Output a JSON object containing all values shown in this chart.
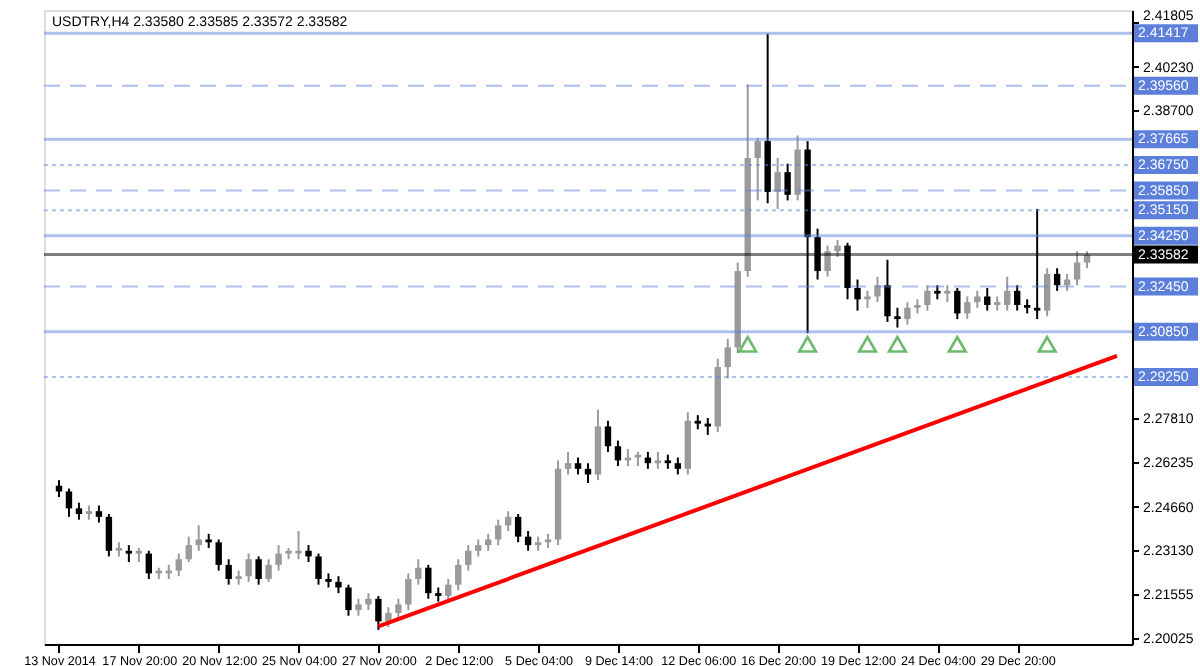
{
  "chart_data": {
    "type": "candlestick",
    "title": "USDTRY,H4  2.33580 2.33585 2.33572 2.33582",
    "categories": [
      "13 Nov 2014",
      null,
      null,
      null,
      null,
      null,
      null,
      null,
      "17 Nov 20:00",
      null,
      null,
      null,
      null,
      null,
      null,
      null,
      "20 Nov 12:00",
      null,
      null,
      null,
      null,
      null,
      null,
      null,
      "25 Nov 04:00",
      null,
      null,
      null,
      null,
      null,
      null,
      null,
      "27 Nov 20:00",
      null,
      null,
      null,
      null,
      null,
      null,
      null,
      "2 Dec 12:00",
      null,
      null,
      null,
      null,
      null,
      null,
      null,
      "5 Dec 04:00",
      null,
      null,
      null,
      null,
      null,
      null,
      null,
      "9 Dec 14:00",
      null,
      null,
      null,
      null,
      null,
      null,
      null,
      "12 Dec 06:00",
      null,
      null,
      null,
      null,
      null,
      null,
      null,
      "16 Dec 20:00",
      null,
      null,
      null,
      null,
      null,
      null,
      null,
      "19 Dec 12:00",
      null,
      null,
      null,
      null,
      null,
      null,
      null,
      "24 Dec 04:00",
      null,
      null,
      null,
      null,
      null,
      null,
      null,
      "29 Dec 20:00",
      null,
      null,
      null,
      null,
      null,
      null,
      null,
      null,
      null,
      null
    ],
    "ohlc": [
      [
        2.254,
        2.256,
        2.25,
        2.252
      ],
      [
        2.252,
        2.253,
        2.243,
        2.246
      ],
      [
        2.246,
        2.248,
        2.242,
        2.244
      ],
      [
        2.244,
        2.247,
        2.242,
        2.245
      ],
      [
        2.245,
        2.247,
        2.241,
        2.243
      ],
      [
        2.243,
        2.244,
        2.229,
        2.231
      ],
      [
        2.231,
        2.234,
        2.229,
        2.232
      ],
      [
        2.231,
        2.233,
        2.227,
        2.23
      ],
      [
        2.23,
        2.232,
        2.227,
        2.231
      ],
      [
        2.23,
        2.231,
        2.221,
        2.223
      ],
      [
        2.223,
        2.225,
        2.221,
        2.224
      ],
      [
        2.223,
        2.226,
        2.221,
        2.224
      ],
      [
        2.224,
        2.23,
        2.222,
        2.228
      ],
      [
        2.228,
        2.236,
        2.227,
        2.233
      ],
      [
        2.233,
        2.24,
        2.231,
        2.235
      ],
      [
        2.235,
        2.237,
        2.232,
        2.234
      ],
      [
        2.234,
        2.235,
        2.224,
        2.226
      ],
      [
        2.226,
        2.228,
        2.219,
        2.221
      ],
      [
        2.221,
        2.224,
        2.219,
        2.222
      ],
      [
        2.222,
        2.23,
        2.22,
        2.228
      ],
      [
        2.228,
        2.229,
        2.219,
        2.221
      ],
      [
        2.221,
        2.228,
        2.22,
        2.226
      ],
      [
        2.226,
        2.233,
        2.224,
        2.23
      ],
      [
        2.23,
        2.232,
        2.228,
        2.231
      ],
      [
        2.23,
        2.238,
        2.228,
        2.231
      ],
      [
        2.231,
        2.233,
        2.227,
        2.229
      ],
      [
        2.229,
        2.23,
        2.219,
        2.221
      ],
      [
        2.221,
        2.223,
        2.218,
        2.22
      ],
      [
        2.22,
        2.222,
        2.216,
        2.218
      ],
      [
        2.218,
        2.219,
        2.208,
        2.21
      ],
      [
        2.21,
        2.214,
        2.208,
        2.212
      ],
      [
        2.212,
        2.216,
        2.21,
        2.214
      ],
      [
        2.214,
        2.215,
        2.203,
        2.206
      ],
      [
        2.206,
        2.211,
        2.204,
        2.209
      ],
      [
        2.209,
        2.214,
        2.207,
        2.212
      ],
      [
        2.212,
        2.223,
        2.21,
        2.221
      ],
      [
        2.221,
        2.228,
        2.219,
        2.225
      ],
      [
        2.225,
        2.226,
        2.214,
        2.216
      ],
      [
        2.216,
        2.218,
        2.213,
        2.215
      ],
      [
        2.215,
        2.221,
        2.213,
        2.219
      ],
      [
        2.219,
        2.228,
        2.217,
        2.226
      ],
      [
        2.226,
        2.233,
        2.224,
        2.231
      ],
      [
        2.231,
        2.235,
        2.229,
        2.233
      ],
      [
        2.233,
        2.237,
        2.231,
        2.235
      ],
      [
        2.235,
        2.242,
        2.233,
        2.24
      ],
      [
        2.24,
        2.245,
        2.238,
        2.243
      ],
      [
        2.243,
        2.244,
        2.234,
        2.236
      ],
      [
        2.236,
        2.238,
        2.231,
        2.233
      ],
      [
        2.233,
        2.236,
        2.231,
        2.234
      ],
      [
        2.234,
        2.237,
        2.232,
        2.235
      ],
      [
        2.235,
        2.263,
        2.233,
        2.26
      ],
      [
        2.26,
        2.266,
        2.258,
        2.262
      ],
      [
        2.262,
        2.264,
        2.258,
        2.26
      ],
      [
        2.26,
        2.262,
        2.255,
        2.258
      ],
      [
        2.258,
        2.281,
        2.256,
        2.275
      ],
      [
        2.275,
        2.277,
        2.266,
        2.268
      ],
      [
        2.268,
        2.27,
        2.261,
        2.263
      ],
      [
        2.263,
        2.267,
        2.261,
        2.264
      ],
      [
        2.264,
        2.266,
        2.261,
        2.265
      ],
      [
        2.264,
        2.266,
        2.26,
        2.262
      ],
      [
        2.262,
        2.266,
        2.26,
        2.263
      ],
      [
        2.263,
        2.265,
        2.26,
        2.262
      ],
      [
        2.262,
        2.264,
        2.258,
        2.26
      ],
      [
        2.26,
        2.28,
        2.258,
        2.277
      ],
      [
        2.277,
        2.279,
        2.274,
        2.276
      ],
      [
        2.276,
        2.278,
        2.272,
        2.275
      ],
      [
        2.275,
        2.299,
        2.273,
        2.296
      ],
      [
        2.296,
        2.306,
        2.292,
        2.303
      ],
      [
        2.303,
        2.333,
        2.301,
        2.33
      ],
      [
        2.33,
        2.396,
        2.328,
        2.37
      ],
      [
        2.37,
        2.377,
        2.355,
        2.376
      ],
      [
        2.376,
        2.414,
        2.354,
        2.358
      ],
      [
        2.358,
        2.37,
        2.352,
        2.365
      ],
      [
        2.365,
        2.368,
        2.355,
        2.357
      ],
      [
        2.357,
        2.378,
        2.355,
        2.373
      ],
      [
        2.373,
        2.376,
        2.308,
        2.342
      ],
      [
        2.342,
        2.345,
        2.327,
        2.33
      ],
      [
        2.33,
        2.339,
        2.328,
        2.337
      ],
      [
        2.337,
        2.341,
        2.335,
        2.339
      ],
      [
        2.339,
        2.34,
        2.32,
        2.324
      ],
      [
        2.324,
        2.327,
        2.316,
        2.32
      ],
      [
        2.32,
        2.323,
        2.317,
        2.321
      ],
      [
        2.321,
        2.328,
        2.319,
        2.325
      ],
      [
        2.325,
        2.334,
        2.312,
        2.314
      ],
      [
        2.314,
        2.317,
        2.31,
        2.313
      ],
      [
        2.313,
        2.319,
        2.311,
        2.317
      ],
      [
        2.317,
        2.32,
        2.315,
        2.318
      ],
      [
        2.318,
        2.325,
        2.316,
        2.323
      ],
      [
        2.323,
        2.325,
        2.32,
        2.322
      ],
      [
        2.322,
        2.325,
        2.319,
        2.323
      ],
      [
        2.323,
        2.324,
        2.313,
        2.315
      ],
      [
        2.315,
        2.321,
        2.313,
        2.319
      ],
      [
        2.319,
        2.323,
        2.317,
        2.321
      ],
      [
        2.321,
        2.324,
        2.316,
        2.318
      ],
      [
        2.318,
        2.321,
        2.316,
        2.319
      ],
      [
        2.318,
        2.328,
        2.316,
        2.323
      ],
      [
        2.323,
        2.325,
        2.316,
        2.318
      ],
      [
        2.318,
        2.32,
        2.315,
        2.317
      ],
      [
        2.317,
        2.352,
        2.313,
        2.316
      ],
      [
        2.316,
        2.331,
        2.314,
        2.329
      ],
      [
        2.329,
        2.331,
        2.323,
        2.325
      ],
      [
        2.325,
        2.329,
        2.323,
        2.327
      ],
      [
        2.327,
        2.337,
        2.325,
        2.333
      ],
      [
        2.333,
        2.337,
        2.331,
        2.3358
      ],
      null,
      null,
      null
    ],
    "colors": [
      "#000000",
      "#000000",
      "#000000",
      "#9a9a9a",
      "#000000",
      "#000000",
      "#9a9a9a",
      "#000000",
      "#9a9a9a",
      "#000000",
      "#9a9a9a",
      "#9a9a9a",
      "#9a9a9a",
      "#9a9a9a",
      "#9a9a9a",
      "#000000",
      "#000000",
      "#000000",
      "#9a9a9a",
      "#9a9a9a",
      "#000000",
      "#9a9a9a",
      "#9a9a9a",
      "#9a9a9a",
      "#9a9a9a",
      "#000000",
      "#000000",
      "#000000",
      "#000000",
      "#000000",
      "#9a9a9a",
      "#9a9a9a",
      "#000000",
      "#9a9a9a",
      "#9a9a9a",
      "#9a9a9a",
      "#9a9a9a",
      "#000000",
      "#000000",
      "#9a9a9a",
      "#9a9a9a",
      "#9a9a9a",
      "#9a9a9a",
      "#9a9a9a",
      "#9a9a9a",
      "#9a9a9a",
      "#000000",
      "#000000",
      "#9a9a9a",
      "#9a9a9a",
      "#9a9a9a",
      "#9a9a9a",
      "#000000",
      "#000000",
      "#9a9a9a",
      "#000000",
      "#000000",
      "#9a9a9a",
      "#9a9a9a",
      "#000000",
      "#9a9a9a",
      "#000000",
      "#000000",
      "#9a9a9a",
      "#000000",
      "#000000",
      "#9a9a9a",
      "#9a9a9a",
      "#9a9a9a",
      "#9a9a9a",
      "#9a9a9a",
      "#000000",
      "#9a9a9a",
      "#000000",
      "#9a9a9a",
      "#000000",
      "#000000",
      "#9a9a9a",
      "#9a9a9a",
      "#000000",
      "#000000",
      "#9a9a9a",
      "#9a9a9a",
      "#000000",
      "#000000",
      "#9a9a9a",
      "#9a9a9a",
      "#9a9a9a",
      "#000000",
      "#9a9a9a",
      "#000000",
      "#9a9a9a",
      "#9a9a9a",
      "#000000",
      "#9a9a9a",
      "#9a9a9a",
      "#000000",
      "#000000",
      "#000000",
      "#9a9a9a",
      "#000000",
      "#9a9a9a",
      "#9a9a9a",
      "#9a9a9a",
      null,
      null,
      null
    ],
    "series": [
      {
        "type": "line",
        "color": "#ff0000",
        "values": [
          null,
          null,
          null,
          null,
          null,
          null,
          null,
          null,
          null,
          null,
          null,
          null,
          null,
          null,
          null,
          null,
          null,
          null,
          null,
          null,
          null,
          null,
          null,
          null,
          null,
          null,
          null,
          null,
          null,
          null,
          null,
          null,
          2.2042,
          null,
          null,
          null,
          null,
          null,
          null,
          null,
          null,
          null,
          null,
          null,
          null,
          null,
          null,
          null,
          null,
          null,
          null,
          null,
          null,
          null,
          null,
          null,
          null,
          null,
          null,
          null,
          null,
          null,
          null,
          null,
          null,
          null,
          null,
          null,
          null,
          null,
          null,
          null,
          null,
          null,
          null,
          null,
          null,
          null,
          null,
          null,
          null,
          null,
          null,
          null,
          null,
          null,
          null,
          null,
          null,
          null,
          null,
          null,
          null,
          null,
          null,
          null,
          null,
          null,
          null,
          null,
          null,
          null,
          null,
          null,
          null,
          null,
          2.3
        ]
      },
      {
        "type": "scatter",
        "color": "#2e9e2e",
        "marker": "triangle",
        "values": [
          null,
          null,
          null,
          null,
          null,
          null,
          null,
          null,
          null,
          null,
          null,
          null,
          null,
          null,
          null,
          null,
          null,
          null,
          null,
          null,
          null,
          null,
          null,
          null,
          null,
          null,
          null,
          null,
          null,
          null,
          null,
          null,
          null,
          null,
          null,
          null,
          null,
          null,
          null,
          null,
          null,
          null,
          null,
          null,
          null,
          null,
          null,
          null,
          null,
          null,
          null,
          null,
          null,
          null,
          null,
          null,
          null,
          null,
          null,
          null,
          null,
          null,
          null,
          null,
          null,
          null,
          null,
          null,
          null,
          2.3041,
          null,
          null,
          null,
          null,
          null,
          2.3041,
          null,
          null,
          null,
          null,
          null,
          2.3041,
          null,
          null,
          2.3041,
          null,
          null,
          null,
          null,
          null,
          2.3041,
          null,
          null,
          null,
          null,
          null,
          null,
          null,
          null,
          2.3041,
          null,
          null,
          null,
          null,
          null,
          null,
          null
        ]
      }
    ],
    "ylim": [
      2.198,
      2.4224
    ],
    "yticks": [
      {
        "value": 2.20025,
        "label": "2.20025"
      },
      {
        "value": 2.21555,
        "label": "2.21555"
      },
      {
        "value": 2.2313,
        "label": "2.23130"
      },
      {
        "value": 2.2466,
        "label": "2.24660"
      },
      {
        "value": 2.26235,
        "label": "2.26235"
      },
      {
        "value": 2.2781,
        "label": "2.27810"
      },
      {
        "value": 2.387,
        "label": "2.38700"
      },
      {
        "value": 2.4023,
        "label": "2.40230"
      },
      {
        "value": 2.41805,
        "label": "2.41805"
      }
    ],
    "ref_lines": [
      {
        "axis": "y",
        "value": 2.41417,
        "label": "2.41417",
        "color": "#5b7fdb",
        "line_style": "solid"
      },
      {
        "axis": "y",
        "value": 2.3956,
        "label": "2.39560",
        "color": "#5b7fdb",
        "line_style": "dashed"
      },
      {
        "axis": "y",
        "value": 2.37665,
        "label": "2.37665",
        "color": "#5b7fdb",
        "line_style": "solid"
      },
      {
        "axis": "y",
        "value": 2.3675,
        "label": "2.36750",
        "color": "#5b7fdb",
        "line_style": "dotted"
      },
      {
        "axis": "y",
        "value": 2.3585,
        "label": "2.35850",
        "color": "#5b7fdb",
        "line_style": "dashed"
      },
      {
        "axis": "y",
        "value": 2.3515,
        "label": "2.35150",
        "color": "#5b7fdb",
        "line_style": "dotted"
      },
      {
        "axis": "y",
        "value": 2.3425,
        "label": "2.34250",
        "color": "#5b7fdb",
        "line_style": "solid"
      },
      {
        "axis": "y",
        "value": 2.33582,
        "label": "2.33582",
        "color": "#000000",
        "line_style": "solid"
      },
      {
        "axis": "y",
        "value": 2.3245,
        "label": "2.32450",
        "color": "#5b7fdb",
        "line_style": "dashed"
      },
      {
        "axis": "y",
        "value": 2.3085,
        "label": "2.30850",
        "color": "#5b7fdb",
        "line_style": "solid"
      },
      {
        "axis": "y",
        "value": 2.2925,
        "label": "2.29250",
        "color": "#5b7fdb",
        "line_style": "dotted"
      }
    ],
    "grid": false
  }
}
